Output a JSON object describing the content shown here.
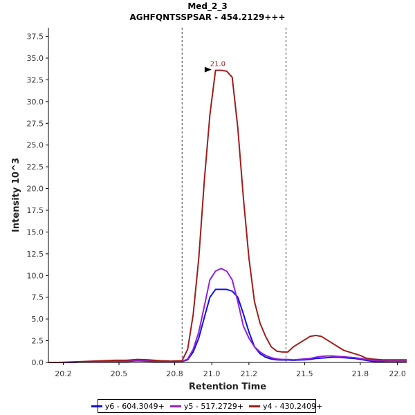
{
  "chart_data": {
    "type": "line",
    "title": "Med_2_3",
    "subtitle": "AGHFQNTSSPSAR - 454.2129+++",
    "xlabel": "Retention Time",
    "ylabel": "Intensity 10^3",
    "xlim": [
      20.12,
      22.05
    ],
    "ylim": [
      0,
      38.5
    ],
    "x_ticks": [
      20.2,
      20.5,
      20.8,
      21.0,
      21.2,
      21.5,
      21.8,
      22.0
    ],
    "x_tick_labels": [
      "20.2",
      "20.5",
      "20.8",
      "21.0",
      "21.2",
      "21.5",
      "21.8",
      "22.0"
    ],
    "y_ticks": [
      0,
      2.5,
      5,
      7.5,
      10,
      12.5,
      15,
      17.5,
      20,
      22.5,
      25,
      27.5,
      30,
      32.5,
      35,
      37.5
    ],
    "y_tick_labels": [
      "0.0",
      "2.5",
      "5.0",
      "7.5",
      "10.0",
      "12.5",
      "15.0",
      "17.5",
      "20.0",
      "22.5",
      "25.0",
      "27.5",
      "30.0",
      "32.5",
      "35.0",
      "37.5"
    ],
    "vlines": [
      20.84,
      21.4
    ],
    "peak_annotation": {
      "label": "21.0",
      "x": 21.01,
      "y": 33.6
    },
    "x": [
      20.12,
      20.18,
      20.24,
      20.3,
      20.36,
      20.42,
      20.48,
      20.54,
      20.6,
      20.66,
      20.72,
      20.78,
      20.84,
      20.87,
      20.9,
      20.93,
      20.96,
      20.99,
      21.02,
      21.05,
      21.08,
      21.11,
      21.14,
      21.17,
      21.2,
      21.23,
      21.26,
      21.29,
      21.32,
      21.35,
      21.38,
      21.41,
      21.44,
      21.47,
      21.5,
      21.53,
      21.56,
      21.59,
      21.62,
      21.65,
      21.68,
      21.71,
      21.74,
      21.77,
      21.8,
      21.83,
      21.86,
      21.89,
      21.92,
      21.95,
      21.98,
      22.01,
      22.05
    ],
    "series": [
      {
        "name": "y6 - 604.3049+",
        "color": "#1010e0",
        "values": [
          0,
          0,
          0,
          0.05,
          0.08,
          0.1,
          0.12,
          0.12,
          0.2,
          0.15,
          0.1,
          0.08,
          0.1,
          0.3,
          1.2,
          2.8,
          5.2,
          7.5,
          8.4,
          8.4,
          8.4,
          8.2,
          7.5,
          5.6,
          3.5,
          1.8,
          1.0,
          0.6,
          0.4,
          0.3,
          0.28,
          0.28,
          0.25,
          0.28,
          0.3,
          0.35,
          0.45,
          0.5,
          0.55,
          0.6,
          0.6,
          0.55,
          0.5,
          0.45,
          0.35,
          0.25,
          0.15,
          0.1,
          0.1,
          0.1,
          0.1,
          0.1,
          0.1
        ]
      },
      {
        "name": "y5 - 517.2729+",
        "color": "#9020e0",
        "values": [
          0,
          0,
          0,
          0.05,
          0.1,
          0.12,
          0.15,
          0.15,
          0.25,
          0.2,
          0.15,
          0.1,
          0.12,
          0.4,
          1.5,
          3.5,
          6.5,
          9.5,
          10.5,
          10.8,
          10.5,
          9.5,
          7.0,
          4.2,
          2.8,
          1.8,
          1.2,
          0.8,
          0.55,
          0.4,
          0.35,
          0.35,
          0.3,
          0.35,
          0.4,
          0.45,
          0.6,
          0.7,
          0.75,
          0.75,
          0.7,
          0.65,
          0.6,
          0.55,
          0.45,
          0.35,
          0.25,
          0.2,
          0.2,
          0.15,
          0.15,
          0.15,
          0.15
        ]
      },
      {
        "name": "y4 - 430.2409+",
        "color": "#a01c1c",
        "values": [
          0,
          0,
          0.05,
          0.1,
          0.15,
          0.2,
          0.25,
          0.25,
          0.35,
          0.3,
          0.2,
          0.15,
          0.2,
          1.5,
          5.5,
          12.0,
          21.0,
          28.5,
          33.6,
          33.6,
          33.5,
          32.8,
          27.0,
          19.0,
          12.0,
          7.0,
          4.5,
          3.0,
          1.8,
          1.3,
          1.2,
          1.2,
          1.8,
          2.2,
          2.6,
          3.0,
          3.1,
          3.0,
          2.6,
          2.2,
          1.8,
          1.4,
          1.2,
          1.0,
          0.8,
          0.5,
          0.4,
          0.35,
          0.3,
          0.3,
          0.3,
          0.3,
          0.3
        ]
      }
    ]
  }
}
